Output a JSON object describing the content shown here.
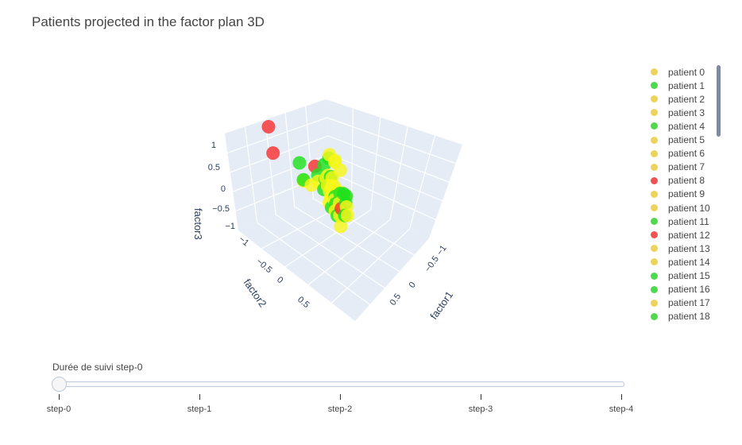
{
  "title": "Patients projected in the factor plan 3D",
  "colors": {
    "yellow": "#f7f71a",
    "green": "#1ee01e",
    "red": "#f73232",
    "legend_yellow": "#eed35b",
    "legend_green": "#4fd94f",
    "legend_red": "#ef5353"
  },
  "legend": [
    {
      "name": "patient 0",
      "color": "legend_yellow"
    },
    {
      "name": "patient 1",
      "color": "legend_green"
    },
    {
      "name": "patient 2",
      "color": "legend_yellow"
    },
    {
      "name": "patient 3",
      "color": "legend_yellow"
    },
    {
      "name": "patient 4",
      "color": "legend_green"
    },
    {
      "name": "patient 5",
      "color": "legend_yellow"
    },
    {
      "name": "patient 6",
      "color": "legend_yellow"
    },
    {
      "name": "patient 7",
      "color": "legend_yellow"
    },
    {
      "name": "patient 8",
      "color": "legend_red"
    },
    {
      "name": "patient 9",
      "color": "legend_yellow"
    },
    {
      "name": "patient 10",
      "color": "legend_yellow"
    },
    {
      "name": "patient 11",
      "color": "legend_green"
    },
    {
      "name": "patient 12",
      "color": "legend_red"
    },
    {
      "name": "patient 13",
      "color": "legend_yellow"
    },
    {
      "name": "patient 14",
      "color": "legend_yellow"
    },
    {
      "name": "patient 15",
      "color": "legend_green"
    },
    {
      "name": "patient 16",
      "color": "legend_green"
    },
    {
      "name": "patient 17",
      "color": "legend_yellow"
    },
    {
      "name": "patient 18",
      "color": "legend_green"
    }
  ],
  "slider": {
    "label": "Durée de suivi step-0",
    "steps": [
      "step-0",
      "step-1",
      "step-2",
      "step-3",
      "step-4"
    ],
    "active_index": 0
  },
  "chart_data": {
    "type": "scatter",
    "title": "Patients projected in the factor plan 3D",
    "axes": {
      "x": {
        "label": "factor1",
        "ticks": [
          "−1",
          "−0.5",
          "0",
          "0.5"
        ],
        "range": [
          -1.1,
          1.0
        ]
      },
      "y": {
        "label": "factor2",
        "ticks": [
          "−1",
          "−0.5",
          "0",
          "0.5"
        ],
        "range": [
          -1.1,
          1.0
        ]
      },
      "z": {
        "label": "factor3",
        "ticks": [
          "−1",
          "−0.5",
          "0",
          "0.5",
          "1"
        ],
        "range": [
          -1.1,
          1.2
        ]
      }
    },
    "points": [
      {
        "x": -0.05,
        "y": 0.02,
        "z": 0.02,
        "c": "yellow"
      },
      {
        "x": 0.1,
        "y": -0.15,
        "z": 0.02,
        "c": "green"
      },
      {
        "x": 0.15,
        "y": -0.08,
        "z": 0.06,
        "c": "yellow"
      },
      {
        "x": 0.02,
        "y": -0.05,
        "z": 0.05,
        "c": "yellow"
      },
      {
        "x": -0.15,
        "y": 0.1,
        "z": -0.05,
        "c": "green"
      },
      {
        "x": 0.25,
        "y": -0.15,
        "z": 0.1,
        "c": "yellow"
      },
      {
        "x": 0.05,
        "y": 0.15,
        "z": -0.02,
        "c": "yellow"
      },
      {
        "x": -0.1,
        "y": -0.22,
        "z": 0.15,
        "c": "yellow"
      },
      {
        "x": -0.75,
        "y": -0.7,
        "z": 0.65,
        "c": "red"
      },
      {
        "x": -0.3,
        "y": -0.4,
        "z": 0.1,
        "c": "yellow"
      },
      {
        "x": -0.2,
        "y": -0.3,
        "z": 0.05,
        "c": "yellow"
      },
      {
        "x": -0.45,
        "y": -0.3,
        "z": 0.3,
        "c": "green"
      },
      {
        "x": -0.62,
        "y": -0.88,
        "z": 0.95,
        "c": "red"
      },
      {
        "x": 0.35,
        "y": 0.1,
        "z": -0.1,
        "c": "yellow"
      },
      {
        "x": 0.4,
        "y": -0.1,
        "z": -0.4,
        "c": "yellow"
      },
      {
        "x": 0.0,
        "y": -0.3,
        "z": 0.15,
        "c": "green"
      },
      {
        "x": 0.05,
        "y": 0.05,
        "z": 0.02,
        "c": "green"
      },
      {
        "x": -0.05,
        "y": 0.22,
        "z": -0.15,
        "c": "yellow"
      },
      {
        "x": 0.15,
        "y": 0.1,
        "z": 0.08,
        "c": "green"
      },
      {
        "x": 0.1,
        "y": -0.2,
        "z": 0.1,
        "c": "green"
      },
      {
        "x": -0.1,
        "y": 0.15,
        "z": -0.1,
        "c": "yellow"
      },
      {
        "x": 0.35,
        "y": -0.15,
        "z": 0.4,
        "c": "yellow"
      },
      {
        "x": 0.4,
        "y": -0.2,
        "z": 0.3,
        "c": "yellow"
      },
      {
        "x": 0.3,
        "y": -0.25,
        "z": 0.45,
        "c": "yellow"
      },
      {
        "x": 0.35,
        "y": -0.3,
        "z": 0.3,
        "c": "green"
      },
      {
        "x": 0.45,
        "y": -0.1,
        "z": 0.2,
        "c": "yellow"
      },
      {
        "x": -0.35,
        "y": -0.45,
        "z": 0.45,
        "c": "green"
      },
      {
        "x": -0.2,
        "y": 0.25,
        "z": -0.05,
        "c": "green"
      },
      {
        "x": 0.25,
        "y": 0.05,
        "z": 0.0,
        "c": "yellow"
      },
      {
        "x": 0.2,
        "y": 0.2,
        "z": -0.05,
        "c": "green"
      },
      {
        "x": -0.1,
        "y": -0.1,
        "z": 0.1,
        "c": "green"
      },
      {
        "x": 0.05,
        "y": -0.15,
        "z": 0.2,
        "c": "yellow"
      },
      {
        "x": 0.15,
        "y": 0.25,
        "z": -0.05,
        "c": "yellow"
      },
      {
        "x": 0.3,
        "y": 0.15,
        "z": 0.0,
        "c": "green"
      },
      {
        "x": -0.05,
        "y": 0.1,
        "z": 0.05,
        "c": "yellow"
      },
      {
        "x": 0.2,
        "y": -0.15,
        "z": 0.15,
        "c": "green"
      },
      {
        "x": 0.1,
        "y": 0.0,
        "z": 0.15,
        "c": "yellow"
      },
      {
        "x": -0.05,
        "y": 0.25,
        "z": 0.02,
        "c": "red"
      },
      {
        "x": 0.05,
        "y": -0.4,
        "z": 0.2,
        "c": "red"
      },
      {
        "x": -0.25,
        "y": 0.35,
        "z": -0.15,
        "c": "yellow"
      },
      {
        "x": 0.0,
        "y": 0.3,
        "z": -0.1,
        "c": "green"
      },
      {
        "x": 0.2,
        "y": 0.15,
        "z": 0.1,
        "c": "green"
      },
      {
        "x": -0.15,
        "y": 0.05,
        "z": 0.0,
        "c": "yellow"
      },
      {
        "x": 0.25,
        "y": -0.25,
        "z": 0.05,
        "c": "yellow"
      },
      {
        "x": -0.05,
        "y": -0.05,
        "z": 0.2,
        "c": "yellow"
      },
      {
        "x": 0.1,
        "y": 0.3,
        "z": -0.15,
        "c": "yellow"
      },
      {
        "x": 0.2,
        "y": -0.3,
        "z": 0.25,
        "c": "green"
      },
      {
        "x": 0.0,
        "y": 0.1,
        "z": -0.05,
        "c": "green"
      },
      {
        "x": 0.15,
        "y": -0.05,
        "z": -0.05,
        "c": "yellow"
      }
    ]
  }
}
